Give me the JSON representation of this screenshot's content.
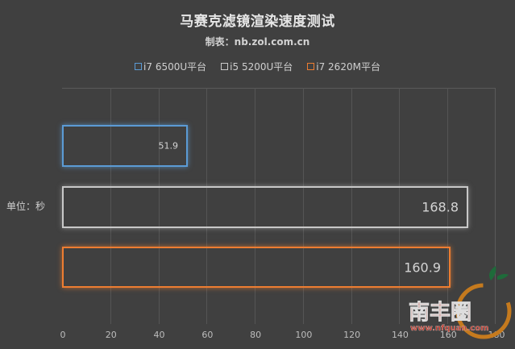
{
  "header": {
    "title": "马赛克滤镜渲染速度测试",
    "subtitle": "制表：nb.zol.com.cn"
  },
  "y_axis_unit": "单位：秒",
  "watermark": {
    "brand": "南丰圈",
    "url": "www.nfquan.com"
  },
  "chart_data": {
    "type": "bar",
    "orientation": "horizontal",
    "title": "马赛克滤镜渲染速度测试",
    "subtitle": "制表：nb.zol.com.cn",
    "xlabel": "",
    "ylabel": "单位：秒",
    "xlim": [
      0,
      180
    ],
    "x_ticks": [
      "0",
      "20",
      "40",
      "60",
      "80",
      "100",
      "120",
      "140",
      "160",
      "180"
    ],
    "grid": true,
    "legend_position": "top",
    "series": [
      {
        "name": "i7 6500U平台",
        "value": 51.9,
        "label": "51.9",
        "color": "#5b9bd5"
      },
      {
        "name": "i5 5200U平台",
        "value": 168.8,
        "label": "168.8",
        "color": "#c8c8c8"
      },
      {
        "name": "i7 2620M平台",
        "value": 160.9,
        "label": "160.9",
        "color": "#ed7d31"
      }
    ]
  }
}
